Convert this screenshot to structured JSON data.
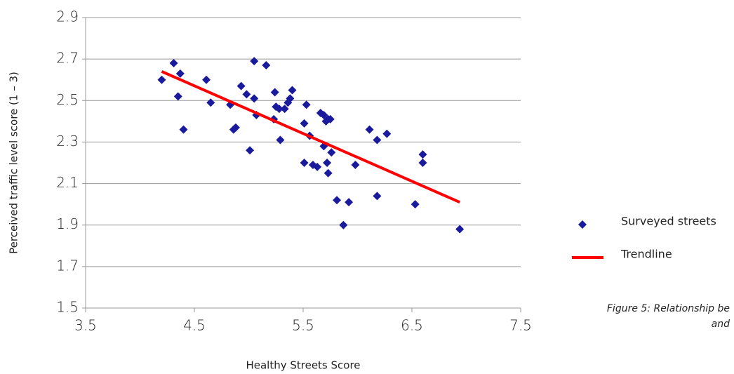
{
  "chart_data": {
    "type": "scatter",
    "caption": "Figure 5: Relationship be",
    "caption_line2": "and",
    "x_label": "Healthy Streets Score",
    "y_label": "Perceived traffic level score (1 – 3)",
    "xlim": [
      3.5,
      7.5
    ],
    "xticks": [
      3.5,
      4.5,
      5.5,
      6.5,
      7.5
    ],
    "ylim": [
      1.5,
      2.9
    ],
    "yticks": [
      1.5,
      1.7,
      1.9,
      2.1,
      2.3,
      2.5,
      2.7,
      2.9
    ],
    "grid": true,
    "legend": "right",
    "series": [
      {
        "name": "Surveyed streets",
        "color": "#1a1a9c",
        "mode": "markers",
        "x": [
          4.2,
          4.31,
          4.37,
          4.35,
          4.4,
          4.61,
          4.65,
          4.83,
          4.86,
          4.88,
          4.93,
          4.98,
          5.01,
          5.05,
          5.05,
          5.07,
          5.16,
          5.24,
          5.23,
          5.25,
          5.28,
          5.29,
          5.33,
          5.36,
          5.38,
          5.4,
          5.53,
          5.51,
          5.51,
          5.56,
          5.59,
          5.63,
          5.66,
          5.69,
          5.71,
          5.75,
          5.69,
          5.72,
          5.73,
          5.76,
          5.81,
          5.92,
          5.87,
          5.98,
          6.11,
          6.18,
          6.18,
          6.27,
          6.53,
          6.6,
          6.6,
          6.94,
          5.73
        ],
        "values": [
          2.6,
          2.68,
          2.63,
          2.52,
          2.36,
          2.6,
          2.49,
          2.48,
          2.36,
          2.37,
          2.57,
          2.53,
          2.26,
          2.69,
          2.51,
          2.43,
          2.67,
          2.54,
          2.41,
          2.47,
          2.46,
          2.31,
          2.46,
          2.49,
          2.51,
          2.55,
          2.48,
          2.39,
          2.2,
          2.33,
          2.19,
          2.18,
          2.44,
          2.43,
          2.4,
          2.41,
          2.28,
          2.2,
          2.15,
          2.25,
          2.02,
          2.01,
          1.9,
          2.19,
          2.36,
          2.31,
          2.04,
          2.34,
          2.0,
          2.24,
          2.2,
          1.88,
          2.41
        ]
      },
      {
        "name": "Trendline",
        "color": "#ff0000",
        "mode": "line",
        "x": [
          4.2,
          6.94
        ],
        "values": [
          2.64,
          2.01
        ]
      }
    ]
  }
}
